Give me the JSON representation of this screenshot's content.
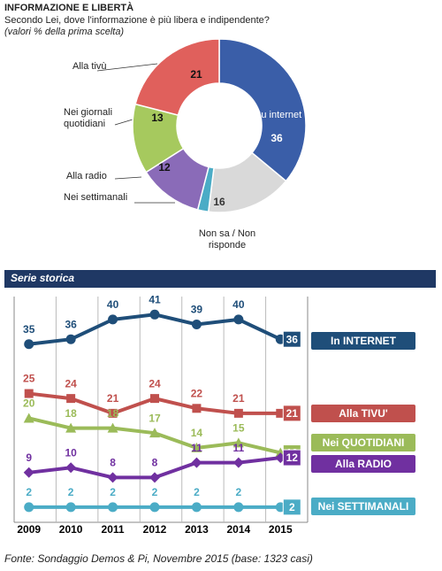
{
  "chart_data": [
    {
      "type": "pie",
      "title": "INFORMAZIONE E LIBERTÀ",
      "subtitle": "Secondo Lei, dove l'informazione è più libera e indipendente?",
      "note": "(valori % della prima scelta)",
      "categories": [
        "Su internet",
        "Non sa / Non risponde",
        "Nei settimanali",
        "Alla radio",
        "Nei giornali quotidiani",
        "Alla tivù"
      ],
      "values": [
        36,
        16,
        2,
        12,
        13,
        21
      ],
      "colors": [
        "#3a5ea8",
        "#d9d9d9",
        "#4bacc6",
        "#8a6bb8",
        "#a6c95e",
        "#e0605c"
      ]
    },
    {
      "type": "line",
      "title": "Serie storica",
      "categories": [
        "2009",
        "2010",
        "2011",
        "2012",
        "2013",
        "2014",
        "2015"
      ],
      "series": [
        {
          "name": "In INTERNET",
          "color": "#1f4e79",
          "values": [
            35,
            36,
            40,
            41,
            39,
            40,
            36
          ]
        },
        {
          "name": "Alla TIVU'",
          "color": "#c0504d",
          "values": [
            25,
            24,
            21,
            24,
            22,
            21,
            21
          ]
        },
        {
          "name": "Nei QUOTIDIANI",
          "color": "#9bbb59",
          "values": [
            20,
            18,
            18,
            17,
            14,
            15,
            13
          ]
        },
        {
          "name": "Alla RADIO",
          "color": "#7030a0",
          "values": [
            9,
            10,
            8,
            8,
            11,
            11,
            12
          ]
        },
        {
          "name": "Nei SETTIMANALI",
          "color": "#4bacc6",
          "values": [
            2,
            2,
            2,
            2,
            2,
            2,
            2
          ]
        }
      ],
      "ylim": [
        0,
        45
      ],
      "source": "Fonte: Sondaggio Demos & Pi, Novembre 2015 (base: 1323 casi)"
    }
  ]
}
